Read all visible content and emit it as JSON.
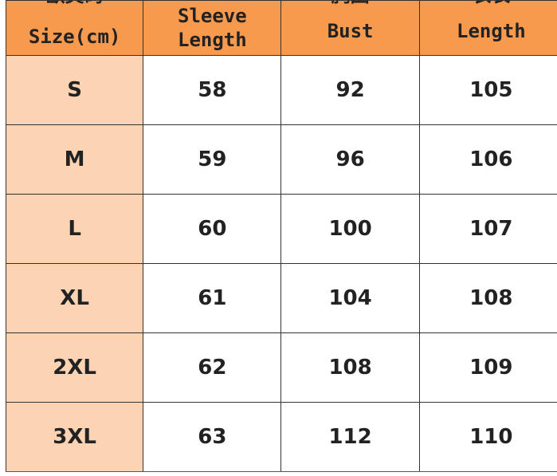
{
  "header": {
    "columns": [
      {
        "cn": "欧美码",
        "en": [
          "Size(cm)"
        ]
      },
      {
        "cn": "",
        "en": [
          "Sleeve",
          "Length"
        ]
      },
      {
        "cn": "胸围",
        "en": [
          "Bust"
        ]
      },
      {
        "cn": "衣长",
        "en": [
          "Length"
        ]
      }
    ]
  },
  "rows": [
    [
      "S",
      "58",
      "92",
      "105"
    ],
    [
      "M",
      "59",
      "96",
      "106"
    ],
    [
      "L",
      "60",
      "100",
      "107"
    ],
    [
      "XL",
      "61",
      "104",
      "108"
    ],
    [
      "2XL",
      "62",
      "108",
      "109"
    ],
    [
      "3XL",
      "63",
      "112",
      "110"
    ]
  ],
  "colors": {
    "header_bg": "#f79a4e",
    "size_col_bg": "#fcd4b4",
    "border": "#333333"
  }
}
